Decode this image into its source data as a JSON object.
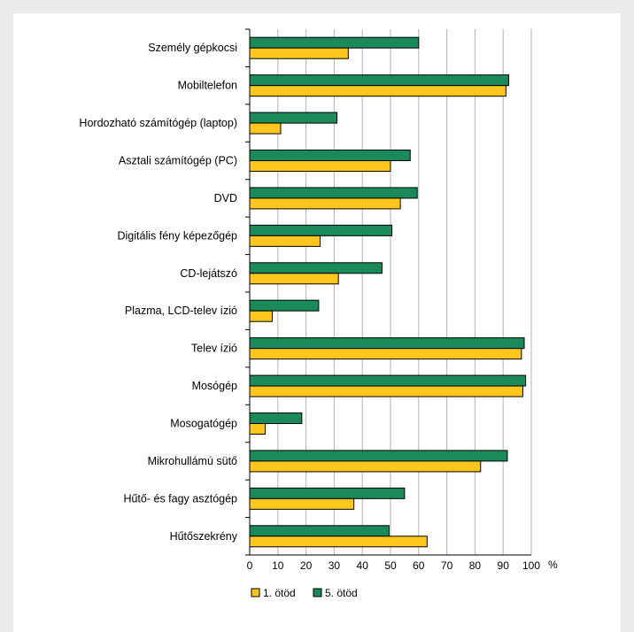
{
  "chart_data": {
    "type": "bar",
    "orientation": "horizontal",
    "categories": [
      "Személy gépkocsi",
      "Mobiltelefon",
      "Hordozható számítógép (laptop)",
      "Asztali számítógép (PC)",
      "DVD",
      "Digitális fény képezőgép",
      "CD-lejátszó",
      "Plazma, LCD-telev ízió",
      "Telev ízió",
      "Mosógép",
      "Mosogatógép",
      "Mikrohullámú sütő",
      "Hűtő- és fagy asztógép",
      "Hűtőszekrény"
    ],
    "series": [
      {
        "name": "5. ötöd",
        "color": "#1a8a5a",
        "values": [
          60,
          92,
          31,
          57,
          59.5,
          50.5,
          47,
          24.5,
          97.5,
          98,
          18.5,
          91.5,
          55,
          49.5
        ]
      },
      {
        "name": "1. ötöd",
        "color": "#ffc61e",
        "values": [
          35,
          91,
          11,
          50,
          53.5,
          25,
          31.5,
          8,
          96.5,
          97,
          5.5,
          82,
          37,
          63
        ]
      }
    ],
    "legend_order": [
      "1. ötöd",
      "5. ötöd"
    ],
    "xlim": [
      0,
      100
    ],
    "xticks": [
      0,
      10,
      20,
      30,
      40,
      50,
      60,
      70,
      80,
      90,
      100
    ],
    "xunit": "%",
    "grid": "vertical",
    "legend_position": "bottom-center"
  }
}
